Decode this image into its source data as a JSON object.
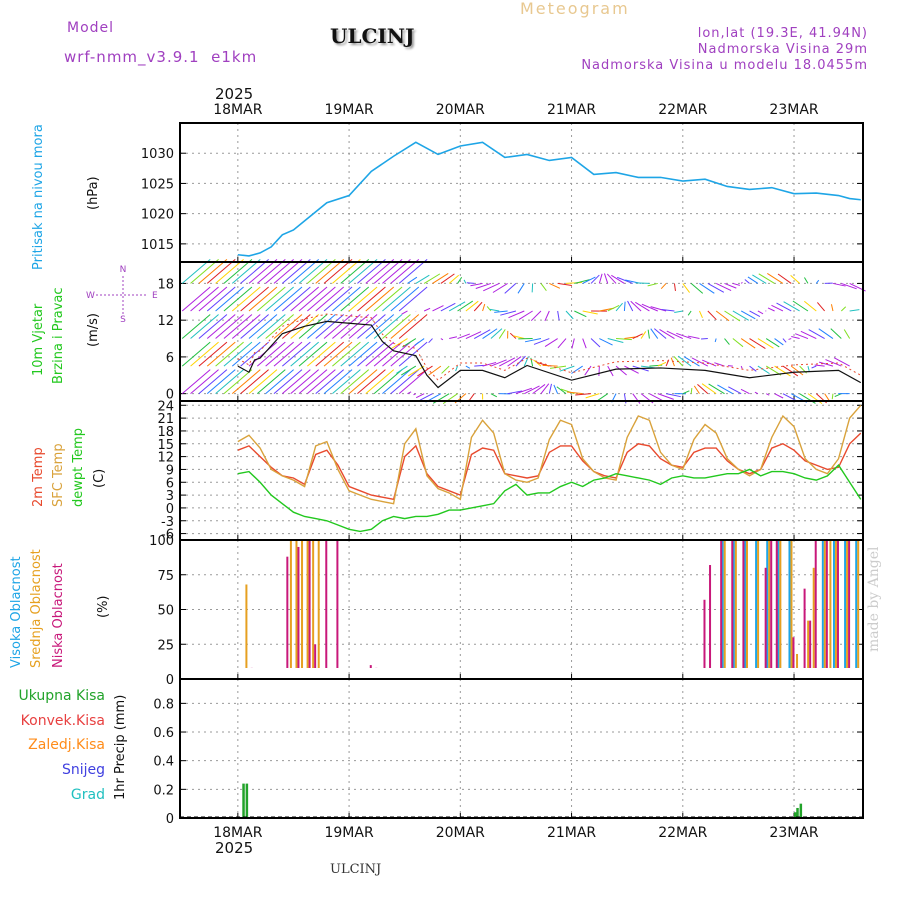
{
  "header": {
    "model_label": "Model",
    "model_name": "wrf-nmm_v3.9.1  e1km",
    "station": "ULCINJ",
    "meteogram": "Meteogram",
    "lonlat": "lon,lat (19.3E, 41.94N)",
    "elevation": "Nadmorska Visina 29m",
    "model_elevation": "Nadmorska Visina u modelu 18.0455m"
  },
  "axis": {
    "year": "2025",
    "date_labels": [
      "18MAR",
      "19MAR",
      "20MAR",
      "21MAR",
      "22MAR",
      "23MAR"
    ]
  },
  "footer": {
    "station": "ULCINJ",
    "credit": "made by Angel"
  },
  "colors": {
    "pressure": "#1ea5e6",
    "t2m": "#e84a2e",
    "sfc": "#d9a23b",
    "dew": "#22c81e",
    "high_cloud": "#1ea5e6",
    "mid_cloud": "#e6a020",
    "low_cloud": "#c8187a",
    "total_precip": "#22a32a",
    "conv_precip": "#e84040",
    "frozen": "#ff8c1a",
    "snow": "#4040e0",
    "graupel": "#20c0c0"
  },
  "chart_data": [
    {
      "panel": "pressure",
      "type": "line",
      "ylabel_left": "Pritisak na nivou mora",
      "ylabel_right": "(hPa)",
      "yticks": [
        1015,
        1020,
        1025,
        1030
      ],
      "ylim": [
        1012,
        1035
      ],
      "x": [
        0,
        0.1,
        0.2,
        0.3,
        0.4,
        0.5,
        0.6,
        0.8,
        1.0,
        1.2,
        1.4,
        1.6,
        1.8,
        2.0,
        2.2,
        2.4,
        2.6,
        2.8,
        3.0,
        3.2,
        3.4,
        3.6,
        3.8,
        4.0,
        4.2,
        4.4,
        4.6,
        4.8,
        5.0,
        5.2,
        5.4,
        5.5,
        5.6
      ],
      "y": [
        1013.2,
        1013.0,
        1013.5,
        1014.5,
        1016.5,
        1017.3,
        1018.8,
        1021.8,
        1023.0,
        1027.0,
        1029.5,
        1031.8,
        1029.8,
        1031.2,
        1031.8,
        1029.3,
        1029.8,
        1028.8,
        1029.3,
        1026.5,
        1026.8,
        1026.0,
        1026.0,
        1025.4,
        1025.7,
        1024.5,
        1024.0,
        1024.3,
        1023.3,
        1023.4,
        1023.0,
        1022.5,
        1022.3
      ],
      "grid": true
    },
    {
      "panel": "wind",
      "type": "line",
      "ylabel_left": [
        "10m Vjetar",
        "Brzina i Pravac"
      ],
      "ylabel_right": "(m/s)",
      "compass": [
        "N",
        "E",
        "S",
        "W"
      ],
      "yticks": [
        0,
        6,
        12,
        18
      ],
      "ylim": [
        -1.2,
        21.5
      ],
      "series": [
        {
          "name": "",
          "x": [
            0,
            0.1,
            0.15,
            0.2,
            0.4,
            0.6,
            0.8,
            1.0,
            1.2,
            1.3,
            1.4,
            1.6,
            1.7,
            1.8,
            2.0,
            2.2,
            2.4,
            2.6,
            3.0,
            3.4,
            3.8,
            4.2,
            4.6,
            5.0,
            5.4,
            5.6
          ],
          "y": [
            4.5,
            3.5,
            5.5,
            5.8,
            9.8,
            11.0,
            11.8,
            11.5,
            11.2,
            8.5,
            7.0,
            6.2,
            3.0,
            1.0,
            3.8,
            3.8,
            2.6,
            4.6,
            2.2,
            4.0,
            4.2,
            3.8,
            2.6,
            3.5,
            3.8,
            1.8
          ]
        }
      ],
      "grid": true
    },
    {
      "panel": "temperature",
      "type": "line",
      "ylabel_left": [
        "2m Temp",
        "SFC Temp",
        "dewpt Temp"
      ],
      "ylabel_right": "(C)",
      "yticks": [
        -6,
        -3,
        0,
        3,
        6,
        9,
        12,
        15,
        18,
        21,
        24
      ],
      "ylim": [
        -7.5,
        25
      ],
      "x": [
        0,
        0.1,
        0.2,
        0.3,
        0.4,
        0.5,
        0.6,
        0.7,
        0.8,
        0.9,
        1.0,
        1.1,
        1.2,
        1.3,
        1.4,
        1.5,
        1.6,
        1.7,
        1.8,
        1.9,
        2.0,
        2.1,
        2.2,
        2.3,
        2.4,
        2.5,
        2.6,
        2.7,
        2.8,
        2.9,
        3.0,
        3.1,
        3.2,
        3.3,
        3.4,
        3.5,
        3.6,
        3.7,
        3.8,
        3.9,
        4.0,
        4.1,
        4.2,
        4.3,
        4.4,
        4.5,
        4.6,
        4.7,
        4.8,
        4.9,
        5.0,
        5.1,
        5.2,
        5.3,
        5.4,
        5.5,
        5.6
      ],
      "series": [
        {
          "name": "2m Temp",
          "y": [
            13.5,
            14.5,
            12.0,
            9.5,
            7.5,
            7.0,
            5.5,
            12.5,
            13.5,
            10.0,
            5.0,
            4.0,
            3.0,
            2.5,
            2.0,
            12.0,
            14.5,
            8.0,
            5.0,
            4.0,
            3.0,
            12.5,
            14.0,
            13.5,
            8.0,
            7.5,
            7.0,
            7.5,
            13.0,
            14.5,
            14.5,
            11.0,
            8.5,
            7.5,
            7.0,
            13.0,
            15.0,
            14.5,
            11.5,
            10.0,
            9.5,
            13.0,
            14.0,
            14.0,
            11.0,
            9.0,
            8.0,
            9.0,
            14.0,
            15.0,
            13.5,
            11.0,
            10.0,
            9.0,
            9.5,
            15.0,
            17.5
          ]
        },
        {
          "name": "SFC Temp",
          "y": [
            15.5,
            17.0,
            14.0,
            9.0,
            7.5,
            6.5,
            5.0,
            14.5,
            15.5,
            9.0,
            4.0,
            3.0,
            2.0,
            1.5,
            1.0,
            15.0,
            18.5,
            7.5,
            4.5,
            3.5,
            2.0,
            16.5,
            20.5,
            17.5,
            8.0,
            6.5,
            6.0,
            7.0,
            16.0,
            20.5,
            19.5,
            11.5,
            8.5,
            7.0,
            6.5,
            16.5,
            21.5,
            20.5,
            13.0,
            10.0,
            9.0,
            16.0,
            19.5,
            17.5,
            11.5,
            9.0,
            7.5,
            9.0,
            16.5,
            21.5,
            19.0,
            11.5,
            9.0,
            8.0,
            11.5,
            21.0,
            24.0
          ]
        },
        {
          "name": "dewpt Temp",
          "y": [
            8.0,
            8.5,
            6.0,
            3.0,
            1.0,
            -1.0,
            -2.0,
            -2.5,
            -3.0,
            -4.0,
            -5.0,
            -5.5,
            -5.0,
            -3.0,
            -2.0,
            -2.5,
            -2.0,
            -2.0,
            -1.5,
            -0.5,
            -0.5,
            0.0,
            0.5,
            1.0,
            4.0,
            5.5,
            3.0,
            3.5,
            3.5,
            5.0,
            6.0,
            5.0,
            6.5,
            7.0,
            8.0,
            7.5,
            7.0,
            6.5,
            5.5,
            7.0,
            7.5,
            7.0,
            7.0,
            7.5,
            8.0,
            8.0,
            9.0,
            7.5,
            8.5,
            8.5,
            8.0,
            7.0,
            6.5,
            7.5,
            10.0,
            6.0,
            2.0
          ]
        }
      ],
      "grid": true
    },
    {
      "panel": "cloud",
      "type": "bar",
      "ylabel_left": [
        "Visoka Oblacnost",
        "Srednja Oblacnost",
        "Niska Oblacnost"
      ],
      "ylabel_right": "(%)",
      "yticks": [
        0,
        25,
        50,
        75,
        100
      ],
      "ylim": [
        0,
        100
      ],
      "series": [
        {
          "name": "Visoka Oblacnost",
          "x": [
            4.35,
            4.45,
            4.55,
            4.65,
            4.75,
            4.85,
            4.95,
            5.05,
            5.25,
            5.35,
            5.45,
            5.55
          ],
          "values": [
            100,
            100,
            100,
            100,
            100,
            100,
            100,
            5,
            100,
            100,
            100,
            100
          ]
        },
        {
          "name": "Srednja Oblacnost",
          "x": [
            0.05,
            0.45,
            0.5,
            0.55,
            0.6,
            0.65,
            0.7,
            4.35,
            4.45,
            4.55,
            4.65,
            4.75,
            4.85,
            4.95,
            5.0,
            5.1,
            5.15,
            5.25,
            5.3,
            5.35,
            5.45,
            5.55
          ],
          "values": [
            68,
            100,
            100,
            100,
            100,
            100,
            100,
            100,
            100,
            100,
            100,
            100,
            100,
            100,
            18,
            42,
            80,
            100,
            100,
            100,
            100,
            100
          ]
        },
        {
          "name": "Niska Oblacnost",
          "x": [
            0.08,
            0.4,
            0.5,
            0.6,
            0.65,
            0.75,
            0.85,
            1.15,
            1.2,
            4.15,
            4.2,
            4.3,
            4.4,
            4.5,
            4.7,
            4.75,
            4.8,
            4.95,
            5.05,
            5.1,
            5.15,
            5.25,
            5.35,
            5.45
          ],
          "values": [
            8,
            88,
            95,
            100,
            25,
            100,
            100,
            10,
            8,
            57,
            82,
            100,
            100,
            100,
            80,
            100,
            100,
            30,
            65,
            42,
            100,
            100,
            100,
            100
          ]
        }
      ],
      "grid": true
    },
    {
      "panel": "precip",
      "type": "bar",
      "ylabel_left": [
        "Ukupna Kisa",
        "Konvek.Kisa",
        "Zaledj.Kisa",
        "Snijeg",
        "Grad"
      ],
      "ylabel_right": "1hr Precip (mm)",
      "yticks": [
        0,
        0.2,
        0.4,
        0.6,
        0.8
      ],
      "ylim": [
        0,
        0.97
      ],
      "series": [
        {
          "name": "Ukupna Kisa",
          "x": [
            0.04,
            0.07,
            5.0,
            5.02,
            5.05
          ],
          "values": [
            0.24,
            0.24,
            0.04,
            0.07,
            0.1
          ]
        }
      ],
      "grid": true
    }
  ]
}
